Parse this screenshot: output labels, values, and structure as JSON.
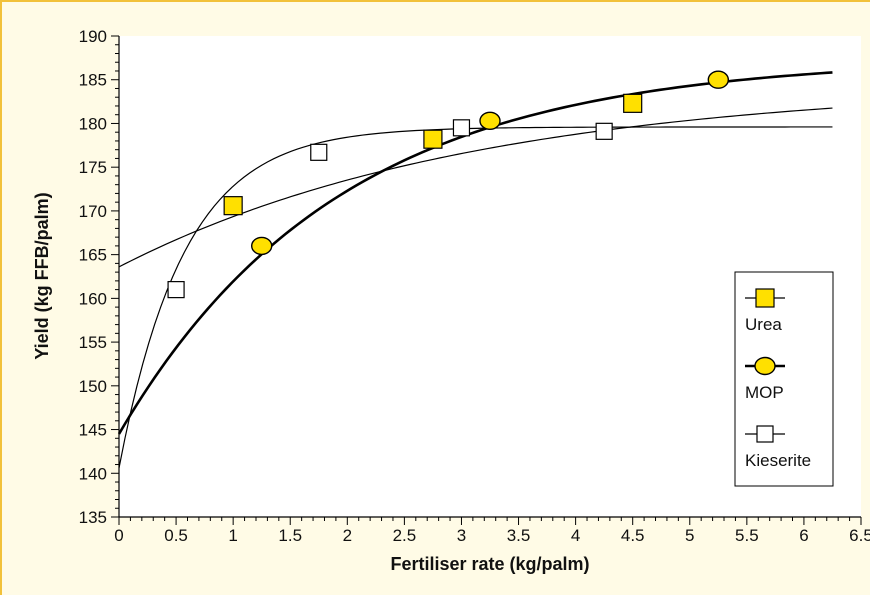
{
  "chart_data": {
    "type": "scatter",
    "xlabel": "Fertiliser rate (kg/palm)",
    "ylabel": "Yield (kg FFB/palm)",
    "xlim": [
      0,
      6.5
    ],
    "ylim": [
      135,
      190
    ],
    "x_ticks": [
      "0",
      "0.5",
      "1",
      "1.5",
      "2",
      "2.5",
      "3",
      "3.5",
      "4",
      "4.5",
      "5",
      "5.5",
      "6",
      "6.5"
    ],
    "y_ticks": [
      "135",
      "140",
      "145",
      "150",
      "155",
      "160",
      "165",
      "170",
      "175",
      "180",
      "185",
      "190"
    ],
    "legend_position": "right",
    "grid": false,
    "series": [
      {
        "name": "Urea",
        "marker": "square",
        "marker_color": "#ffe000",
        "line": "thin",
        "points": [
          {
            "x": 1.0,
            "y": 170.6
          },
          {
            "x": 2.75,
            "y": 178.2
          },
          {
            "x": 4.5,
            "y": 182.3
          }
        ],
        "fit": {
          "a": 184.6,
          "b": 21.0,
          "k": 0.32,
          "x_end": 6.25
        }
      },
      {
        "name": "MOP",
        "marker": "circle",
        "marker_color": "#ffe000",
        "line": "thick",
        "points": [
          {
            "x": 1.25,
            "y": 166.0
          },
          {
            "x": 3.25,
            "y": 180.3
          },
          {
            "x": 5.25,
            "y": 185.0
          }
        ],
        "fit": {
          "a": 187.5,
          "b": 43.0,
          "k": 0.52,
          "x_end": 6.25
        }
      },
      {
        "name": "Kieserite",
        "marker": "square",
        "marker_color": "#ffffff",
        "line": "thin",
        "points": [
          {
            "x": 0.5,
            "y": 161.0
          },
          {
            "x": 1.75,
            "y": 176.7
          },
          {
            "x": 3.0,
            "y": 179.5
          },
          {
            "x": 4.25,
            "y": 179.1
          }
        ],
        "fit": {
          "a": 179.6,
          "b": 39.0,
          "k": 1.75,
          "x_end": 6.25
        }
      }
    ]
  }
}
